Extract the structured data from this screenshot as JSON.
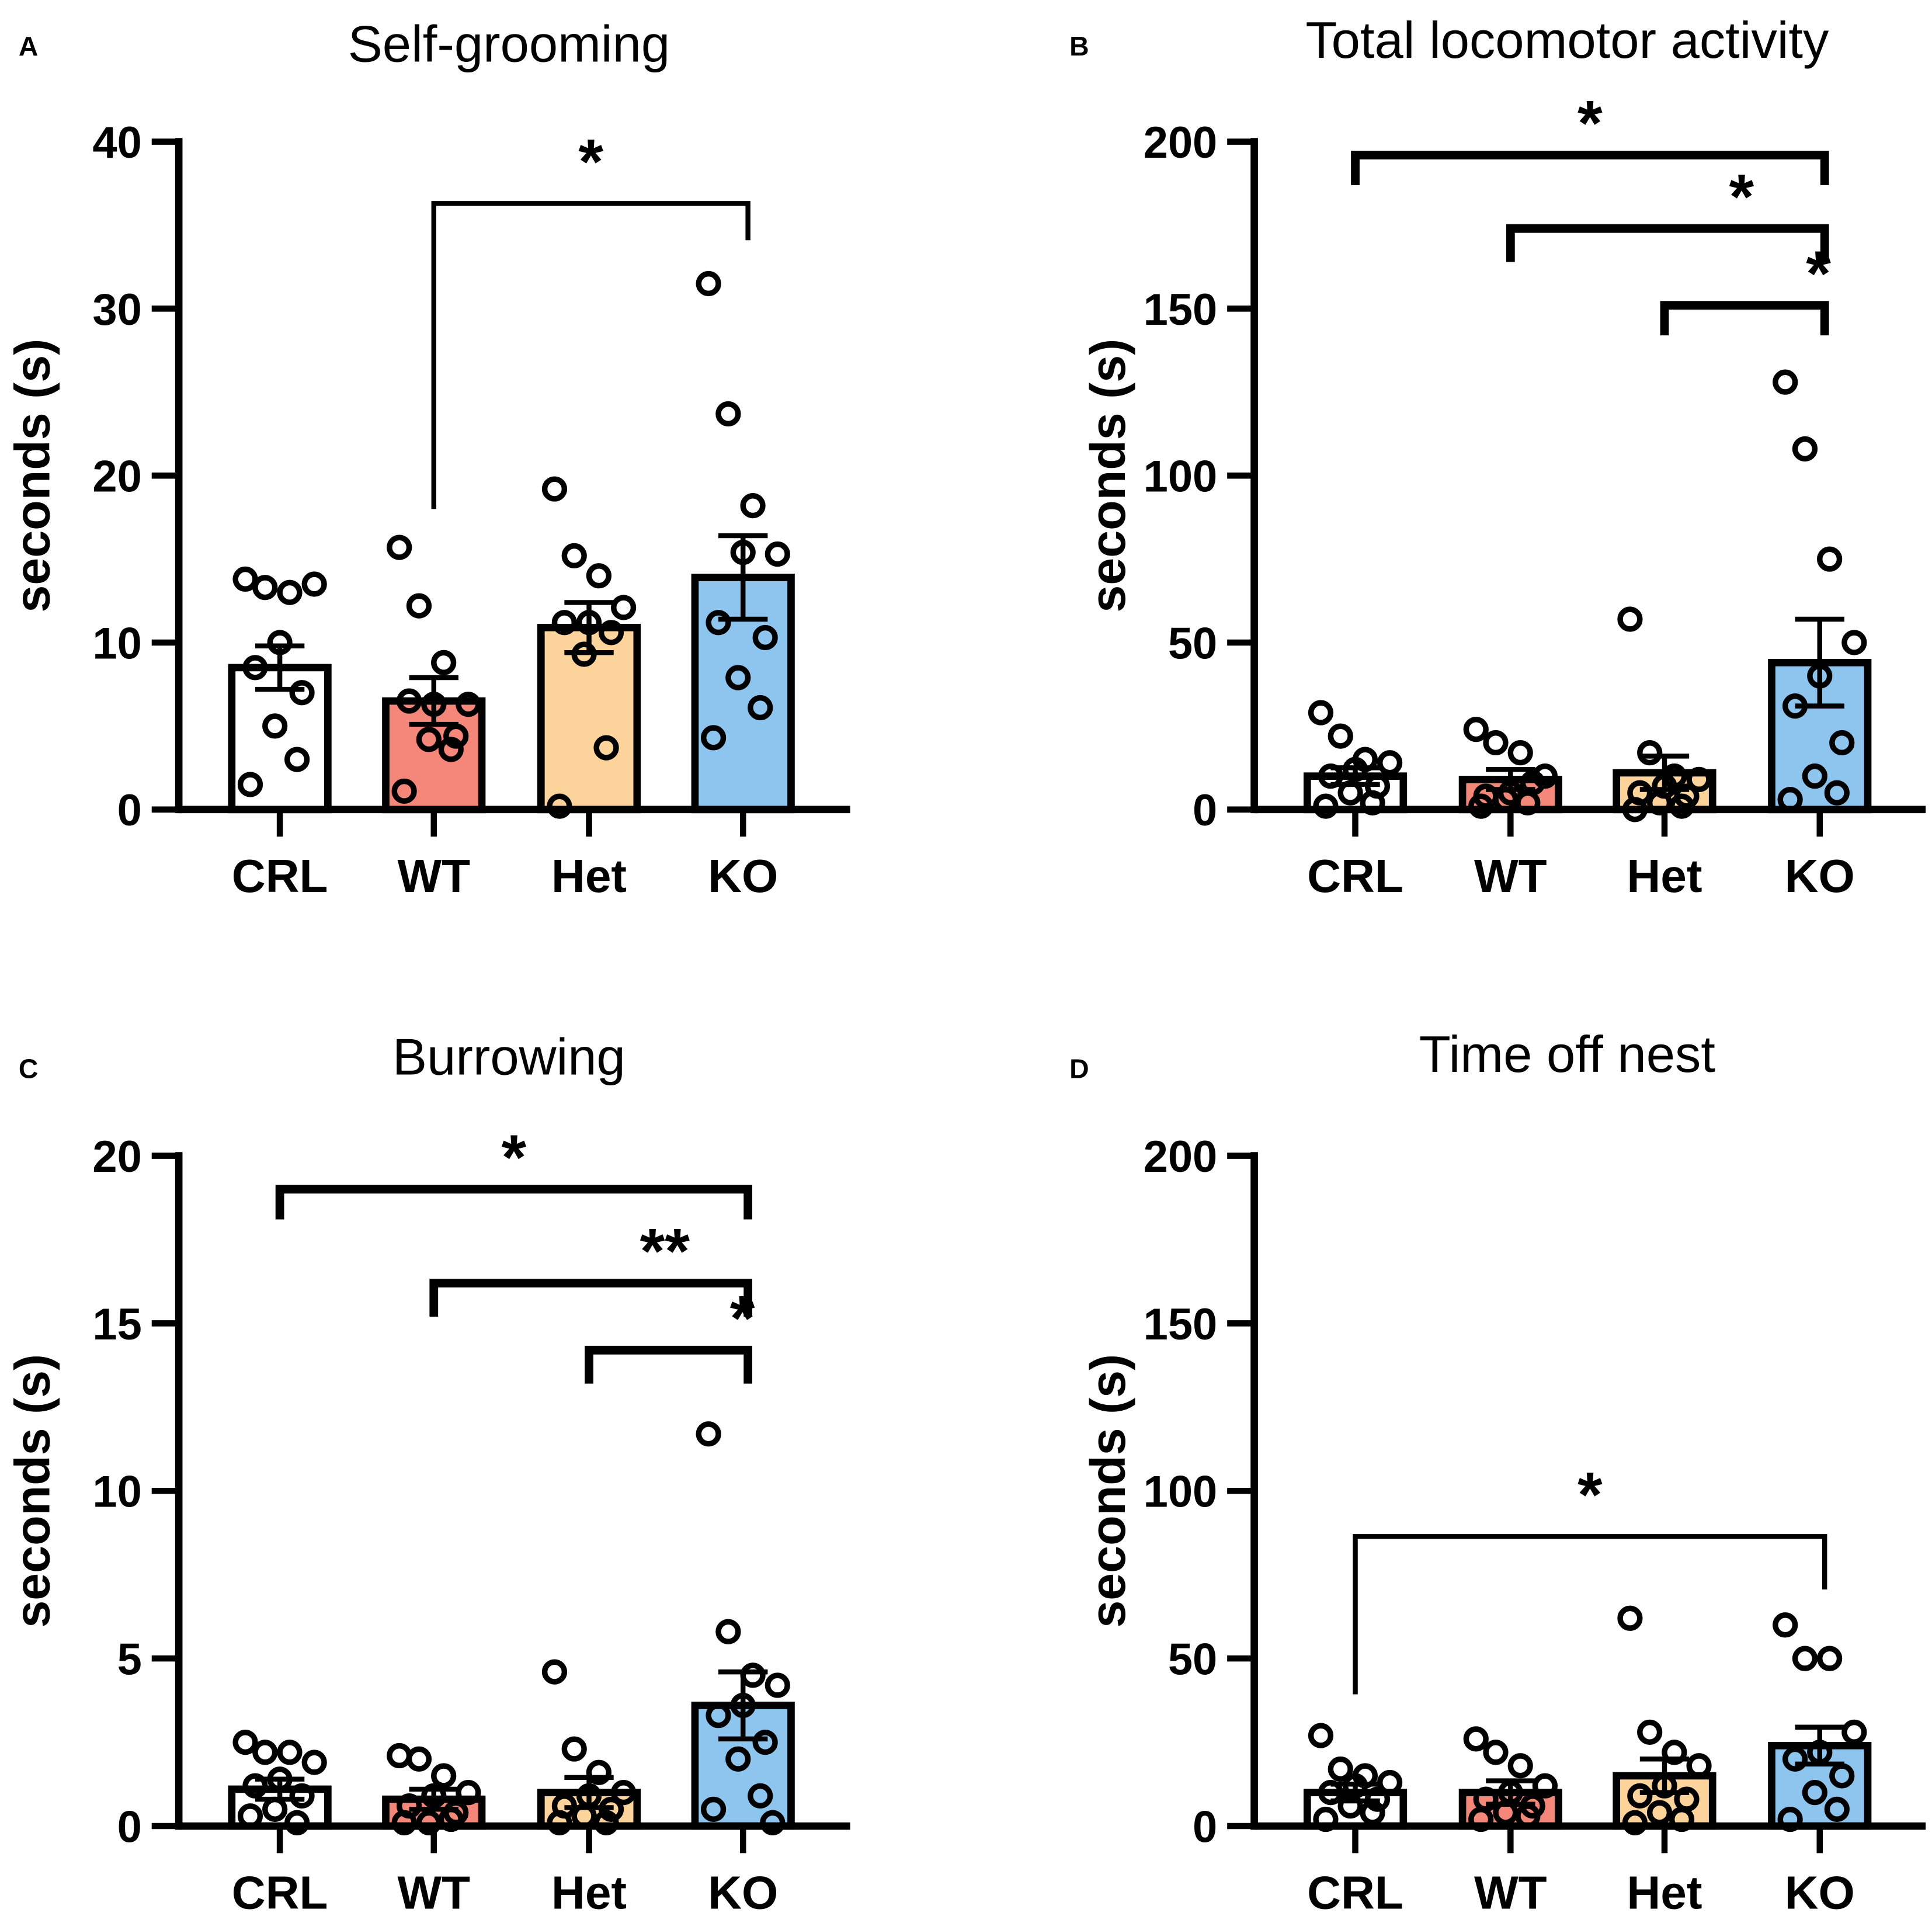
{
  "colors": {
    "CRL": "#ffffff",
    "WT": "#f4877a",
    "Het": "#fdd39c",
    "KO": "#8ec5ee",
    "axis": "#000000"
  },
  "chart_data": [
    {
      "panel": "A",
      "type": "bar",
      "title": "Self-grooming",
      "ylabel": "seconds (s)",
      "xlabel": "",
      "ylim": [
        0,
        40
      ],
      "yticks": [
        0,
        10,
        20,
        30,
        40
      ],
      "categories": [
        "CRL",
        "WT",
        "Het",
        "KO"
      ],
      "values": [
        8.5,
        6.5,
        10.9,
        13.9
      ],
      "sem": [
        1.3,
        1.4,
        1.5,
        2.5
      ],
      "points": [
        [
          13.8,
          13.3,
          13.0,
          13.5,
          10.0,
          8.5,
          7.0,
          5.0,
          3.0,
          1.5
        ],
        [
          15.7,
          12.2,
          8.8,
          6.3,
          6.3,
          6.5,
          4.4,
          4.2,
          3.6,
          1.1
        ],
        [
          19.2,
          15.2,
          14.0,
          12.1,
          11.2,
          11.2,
          10.6,
          9.3,
          3.7,
          0.2
        ],
        [
          31.5,
          23.7,
          18.2,
          15.3,
          15.4,
          11.2,
          10.3,
          7.9,
          6.1,
          4.3
        ]
      ],
      "significance": [
        {
          "from": "WT",
          "to": "KO",
          "label": "*",
          "level": 36.3,
          "left_end": 18.0,
          "right_end": 34.1
        }
      ]
    },
    {
      "panel": "B",
      "type": "bar",
      "title": "Total locomotor activity",
      "ylabel": "seconds (s)",
      "xlabel": "",
      "ylim": [
        0,
        200
      ],
      "yticks": [
        0,
        50,
        100,
        150,
        200
      ],
      "categories": [
        "CRL",
        "WT",
        "Het",
        "KO"
      ],
      "values": [
        10,
        9,
        11,
        44
      ],
      "sem": [
        2.5,
        3,
        5,
        13
      ],
      "points": [
        [
          29,
          22,
          15,
          14,
          12,
          10,
          7,
          5,
          2,
          1
        ],
        [
          24,
          20,
          17,
          10,
          5,
          4,
          8,
          3,
          2,
          1
        ],
        [
          57,
          17,
          10,
          9,
          7,
          5,
          4,
          2,
          1,
          0
        ],
        [
          128,
          108,
          75,
          50,
          40,
          31,
          20,
          10,
          5,
          3
        ]
      ],
      "significance": [
        {
          "from": "CRL",
          "to": "KO",
          "label": "*",
          "level": 196,
          "left_end": 187,
          "right_end": 187
        },
        {
          "from": "WT",
          "to": "KO",
          "label": "*",
          "level": 174,
          "left_end": 164,
          "right_end": 164
        },
        {
          "from": "Het",
          "to": "KO",
          "label": "*",
          "level": 151,
          "left_end": 142,
          "right_end": 142
        }
      ]
    },
    {
      "panel": "C",
      "type": "bar",
      "title": "Burrowing",
      "ylabel": "seconds (s)",
      "xlabel": "",
      "ylim": [
        0,
        20
      ],
      "yticks": [
        0,
        5,
        10,
        15,
        20
      ],
      "categories": [
        "CRL",
        "WT",
        "Het",
        "KO"
      ],
      "values": [
        1.1,
        0.8,
        1.0,
        3.6
      ],
      "sem": [
        0.3,
        0.3,
        0.45,
        1.0
      ],
      "points": [
        [
          2.5,
          2.2,
          2.2,
          1.9,
          1.4,
          1.2,
          0.9,
          0.5,
          0.1,
          0.3
        ],
        [
          2.1,
          2.0,
          1.5,
          1.0,
          0.9,
          0.6,
          0.4,
          0.1,
          0.2,
          0.1
        ],
        [
          4.6,
          2.3,
          1.6,
          1.0,
          0.9,
          0.6,
          0.5,
          0.3,
          0.1,
          0.1
        ],
        [
          11.7,
          5.8,
          4.5,
          4.2,
          3.6,
          3.3,
          2.5,
          2.0,
          0.9,
          0.5,
          0.1
        ]
      ],
      "significance": [
        {
          "from": "CRL",
          "to": "KO",
          "label": "*",
          "level": 19.0,
          "left_end": 18.1,
          "right_end": 18.1
        },
        {
          "from": "WT",
          "to": "KO",
          "label": "**",
          "level": 16.2,
          "left_end": 15.2,
          "right_end": 15.2
        },
        {
          "from": "Het",
          "to": "KO",
          "label": "*",
          "level": 14.2,
          "left_end": 13.2,
          "right_end": 13.2
        }
      ]
    },
    {
      "panel": "D",
      "type": "bar",
      "title": "Time off nest",
      "ylabel": "seconds (s)",
      "xlabel": "",
      "ylim": [
        0,
        200
      ],
      "yticks": [
        0,
        50,
        100,
        150,
        200
      ],
      "categories": [
        "CRL",
        "WT",
        "Het",
        "KO"
      ],
      "values": [
        10,
        10,
        15,
        24
      ],
      "sem": [
        2.5,
        3.5,
        5,
        5.5
      ],
      "points": [
        [
          27,
          17,
          15,
          13,
          12,
          10,
          8,
          6,
          4,
          2
        ],
        [
          26,
          22,
          18,
          12,
          10,
          8,
          6,
          4,
          3,
          2
        ],
        [
          62,
          28,
          22,
          18,
          12,
          9,
          8,
          4,
          2,
          1
        ],
        [
          60,
          50,
          50,
          28,
          22,
          20,
          15,
          10,
          5,
          2
        ]
      ],
      "significance": [
        {
          "from": "CRL",
          "to": "KO",
          "label": "*",
          "level": 86.4,
          "left_end": 39.3,
          "right_end": 70.6
        }
      ]
    }
  ]
}
